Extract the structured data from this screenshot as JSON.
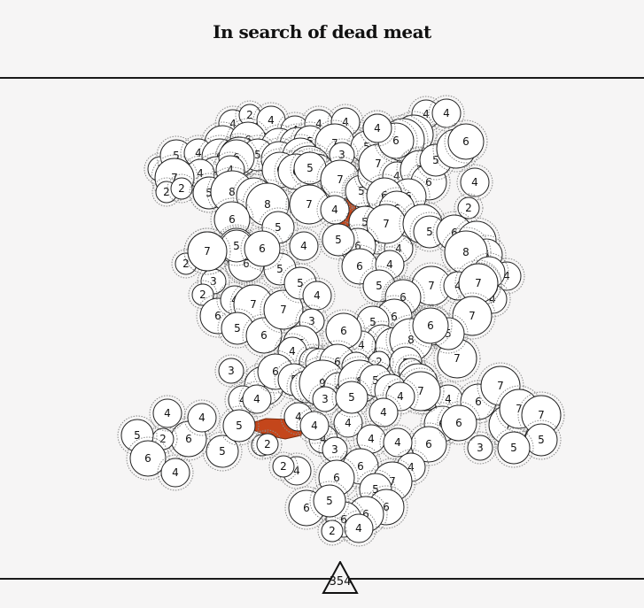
{
  "header": {
    "title": "In search of dead meat"
  },
  "footer": {
    "count": "354"
  },
  "colors": {
    "background": "#f6f5f5",
    "circle_fill": "#ffffff",
    "circle_stroke": "#222222",
    "halo_stroke": "#8a8a8a",
    "carcass": "#c4461b"
  },
  "circles": [
    {
      "v": "4"
    },
    {
      "v": "2"
    },
    {
      "v": "4"
    },
    {
      "v": "4"
    },
    {
      "v": "4"
    },
    {
      "v": "4"
    },
    {
      "v": "2"
    },
    {
      "v": "4"
    },
    {
      "v": "4"
    },
    {
      "v": "6"
    },
    {
      "v": "6"
    },
    {
      "v": "6"
    },
    {
      "v": "6"
    },
    {
      "v": "5"
    },
    {
      "v": "7"
    },
    {
      "v": "5"
    },
    {
      "v": "3"
    },
    {
      "v": "5"
    },
    {
      "v": "4"
    },
    {
      "v": "6"
    },
    {
      "v": "7"
    },
    {
      "v": "5"
    },
    {
      "v": "6"
    },
    {
      "v": "6"
    },
    {
      "v": "8"
    },
    {
      "v": "7"
    },
    {
      "v": "5"
    },
    {
      "v": "6"
    },
    {
      "v": "3"
    },
    {
      "v": "7"
    },
    {
      "v": "4"
    },
    {
      "v": "7"
    },
    {
      "v": "5"
    },
    {
      "v": "6"
    },
    {
      "v": "4"
    },
    {
      "v": "2"
    },
    {
      "v": "2"
    },
    {
      "v": "5"
    },
    {
      "v": "8"
    },
    {
      "v": "6"
    },
    {
      "v": "6"
    },
    {
      "v": "6"
    },
    {
      "v": "5"
    },
    {
      "v": "7"
    },
    {
      "v": "4"
    },
    {
      "v": "8"
    },
    {
      "v": "7"
    },
    {
      "v": "4"
    },
    {
      "v": "5"
    },
    {
      "v": "4"
    },
    {
      "v": "6"
    },
    {
      "v": "7"
    },
    {
      "v": "7"
    },
    {
      "v": "4"
    },
    {
      "v": "8"
    },
    {
      "v": "6"
    },
    {
      "v": "7"
    },
    {
      "v": "4"
    },
    {
      "v": "7"
    },
    {
      "v": "6"
    },
    {
      "v": "4"
    },
    {
      "v": "5"
    },
    {
      "v": "7"
    },
    {
      "v": "6"
    },
    {
      "v": "6"
    },
    {
      "v": "6"
    },
    {
      "v": "5"
    },
    {
      "v": "6"
    },
    {
      "v": "4"
    },
    {
      "v": "4"
    },
    {
      "v": "4"
    },
    {
      "v": "7"
    },
    {
      "v": "6"
    },
    {
      "v": "5"
    },
    {
      "v": "6"
    },
    {
      "v": "4"
    },
    {
      "v": "5"
    },
    {
      "v": "5"
    },
    {
      "v": "4"
    },
    {
      "v": "2"
    },
    {
      "v": "6"
    },
    {
      "v": "6"
    },
    {
      "v": "6"
    },
    {
      "v": "5"
    },
    {
      "v": "3"
    },
    {
      "v": "7"
    },
    {
      "v": "2"
    },
    {
      "v": "6"
    },
    {
      "v": "5"
    },
    {
      "v": "5"
    },
    {
      "v": "7"
    },
    {
      "v": "6"
    },
    {
      "v": "4"
    },
    {
      "v": "7"
    },
    {
      "v": "2"
    },
    {
      "v": "5"
    },
    {
      "v": "6"
    },
    {
      "v": "7"
    },
    {
      "v": "5"
    },
    {
      "v": "4"
    },
    {
      "v": "4"
    },
    {
      "v": "8"
    },
    {
      "v": "5"
    },
    {
      "v": "6"
    },
    {
      "v": "7"
    },
    {
      "v": "4"
    },
    {
      "v": "7"
    },
    {
      "v": "7"
    },
    {
      "v": "7"
    },
    {
      "v": "6"
    },
    {
      "v": "5"
    },
    {
      "v": "6"
    },
    {
      "v": "6"
    },
    {
      "v": "5"
    },
    {
      "v": "5"
    },
    {
      "v": "4"
    },
    {
      "v": "7"
    },
    {
      "v": "8"
    },
    {
      "v": "6"
    },
    {
      "v": "6"
    },
    {
      "v": "5"
    },
    {
      "v": "3"
    },
    {
      "v": "7"
    },
    {
      "v": "5"
    },
    {
      "v": "4"
    },
    {
      "v": "6"
    },
    {
      "v": "6"
    },
    {
      "v": "6"
    },
    {
      "v": "7"
    },
    {
      "v": "7"
    },
    {
      "v": "7"
    },
    {
      "v": "7"
    },
    {
      "v": "5"
    },
    {
      "v": "5"
    },
    {
      "v": "3"
    },
    {
      "v": "6"
    },
    {
      "v": "6"
    },
    {
      "v": "4"
    },
    {
      "v": "7"
    },
    {
      "v": "5"
    },
    {
      "v": "6"
    },
    {
      "v": "7"
    },
    {
      "v": "5"
    },
    {
      "v": "4"
    },
    {
      "v": "3"
    },
    {
      "v": "6"
    },
    {
      "v": "4"
    },
    {
      "v": "4"
    },
    {
      "v": "4"
    },
    {
      "v": "6"
    },
    {
      "v": "4"
    },
    {
      "v": "2"
    },
    {
      "v": "3"
    },
    {
      "v": "7"
    },
    {
      "v": "4"
    },
    {
      "v": "4"
    },
    {
      "v": "6"
    },
    {
      "v": "5"
    },
    {
      "v": "5"
    },
    {
      "v": "9"
    },
    {
      "v": "4"
    },
    {
      "v": "8"
    },
    {
      "v": "5"
    },
    {
      "v": "5"
    },
    {
      "v": "7"
    },
    {
      "v": "4"
    },
    {
      "v": "4"
    },
    {
      "v": "4"
    },
    {
      "v": "4"
    },
    {
      "v": "3"
    },
    {
      "v": "4"
    },
    {
      "v": "4"
    },
    {
      "v": "6"
    },
    {
      "v": "6"
    },
    {
      "v": "4"
    },
    {
      "v": "2"
    },
    {
      "v": "2"
    },
    {
      "v": "5"
    },
    {
      "v": "6"
    },
    {
      "v": "2"
    },
    {
      "v": "5"
    },
    {
      "v": "6"
    },
    {
      "v": "4"
    },
    {
      "v": "4"
    },
    {
      "v": "4"
    },
    {
      "v": "5"
    },
    {
      "v": "2"
    },
    {
      "v": "4"
    },
    {
      "v": "4"
    },
    {
      "v": "3"
    },
    {
      "v": "5"
    },
    {
      "v": "4"
    },
    {
      "v": "7"
    },
    {
      "v": "5"
    },
    {
      "v": "6"
    },
    {
      "v": "6"
    },
    {
      "v": "6"
    },
    {
      "v": "4"
    },
    {
      "v": "2"
    },
    {
      "v": "6"
    },
    {
      "v": "5"
    }
  ]
}
